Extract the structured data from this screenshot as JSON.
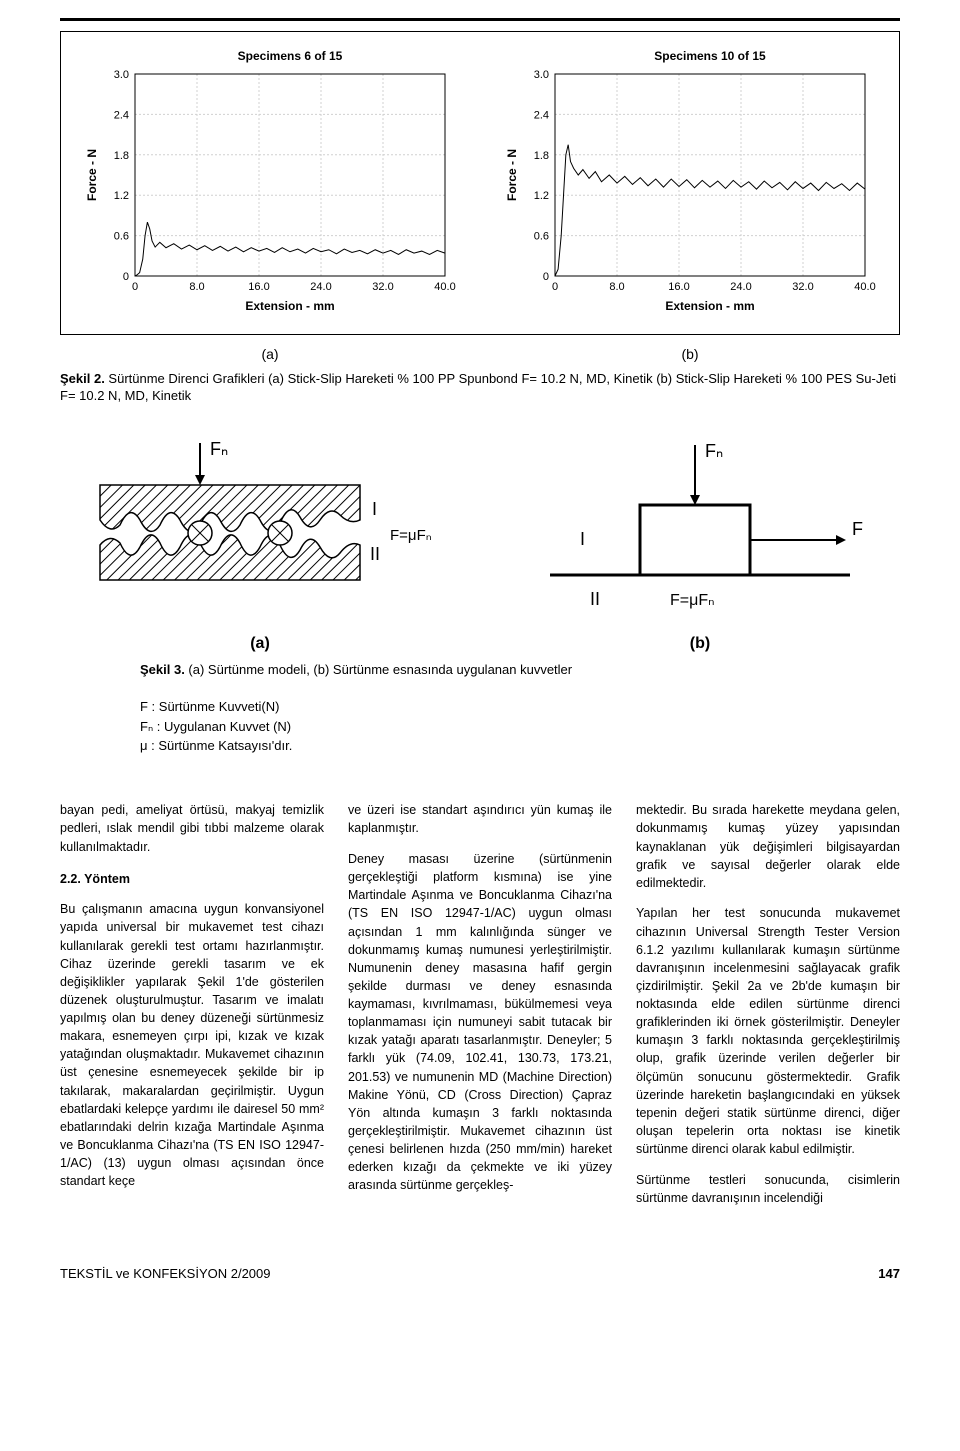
{
  "chart_common": {
    "title_font_weight": "bold",
    "title_fontsize": 12,
    "axis_label_fontsize": 12,
    "tick_fontsize": 11,
    "grid_color": "#d0d0d0",
    "axis_color": "#000",
    "series_color": "#000",
    "series_width": 1.0,
    "background": "#ffffff",
    "ylabel": "Force - N",
    "xlabel": "Extension - mm",
    "xlim": [
      0,
      40
    ],
    "xtick_step": 8,
    "ylim": [
      0,
      3.0
    ],
    "ytick_step": 0.6
  },
  "chart_a": {
    "title": "Specimens 6 of 15",
    "x_ticks": [
      "0",
      "8.0",
      "16.0",
      "24.0",
      "32.0",
      "40.0"
    ],
    "y_ticks": [
      "0",
      "0.6",
      "1.2",
      "1.8",
      "2.4",
      "3.0"
    ],
    "series": [
      [
        0,
        0.0
      ],
      [
        0.3,
        0.02
      ],
      [
        0.6,
        0.05
      ],
      [
        1.0,
        0.25
      ],
      [
        1.3,
        0.6
      ],
      [
        1.6,
        0.8
      ],
      [
        1.9,
        0.7
      ],
      [
        2.2,
        0.52
      ],
      [
        2.6,
        0.43
      ],
      [
        3.2,
        0.5
      ],
      [
        4.0,
        0.42
      ],
      [
        5.0,
        0.48
      ],
      [
        6.0,
        0.4
      ],
      [
        7.0,
        0.46
      ],
      [
        8.0,
        0.39
      ],
      [
        9.0,
        0.45
      ],
      [
        10.0,
        0.38
      ],
      [
        11.0,
        0.44
      ],
      [
        12.0,
        0.37
      ],
      [
        13.0,
        0.43
      ],
      [
        14.0,
        0.36
      ],
      [
        15.0,
        0.42
      ],
      [
        16.0,
        0.37
      ],
      [
        17.0,
        0.41
      ],
      [
        18.0,
        0.35
      ],
      [
        19.0,
        0.42
      ],
      [
        20.0,
        0.36
      ],
      [
        21.0,
        0.4
      ],
      [
        22.0,
        0.34
      ],
      [
        23.0,
        0.41
      ],
      [
        24.0,
        0.36
      ],
      [
        25.0,
        0.39
      ],
      [
        26.0,
        0.33
      ],
      [
        27.0,
        0.4
      ],
      [
        28.0,
        0.35
      ],
      [
        29.0,
        0.38
      ],
      [
        30.0,
        0.33
      ],
      [
        31.0,
        0.39
      ],
      [
        32.0,
        0.34
      ],
      [
        33.0,
        0.38
      ],
      [
        34.0,
        0.32
      ],
      [
        35.0,
        0.39
      ],
      [
        36.0,
        0.34
      ],
      [
        37.0,
        0.37
      ],
      [
        38.0,
        0.32
      ],
      [
        39.0,
        0.38
      ],
      [
        40.0,
        0.34
      ]
    ]
  },
  "chart_b": {
    "title": "Specimens 10 of 15",
    "x_ticks": [
      "0",
      "8.0",
      "16.0",
      "24.0",
      "32.0",
      "40.0"
    ],
    "y_ticks": [
      "0",
      "0.6",
      "1.2",
      "1.8",
      "2.4",
      "3.0"
    ],
    "series": [
      [
        0,
        0.0
      ],
      [
        0.4,
        0.1
      ],
      [
        0.8,
        0.6
      ],
      [
        1.1,
        1.2
      ],
      [
        1.4,
        1.8
      ],
      [
        1.7,
        1.95
      ],
      [
        2.0,
        1.7
      ],
      [
        2.4,
        1.6
      ],
      [
        3.0,
        1.5
      ],
      [
        3.6,
        1.58
      ],
      [
        4.4,
        1.45
      ],
      [
        5.2,
        1.55
      ],
      [
        6.0,
        1.4
      ],
      [
        7.0,
        1.5
      ],
      [
        8.0,
        1.38
      ],
      [
        9.0,
        1.48
      ],
      [
        10.0,
        1.36
      ],
      [
        11.0,
        1.46
      ],
      [
        12.0,
        1.34
      ],
      [
        13.0,
        1.44
      ],
      [
        14.0,
        1.32
      ],
      [
        15.0,
        1.44
      ],
      [
        16.0,
        1.33
      ],
      [
        17.0,
        1.43
      ],
      [
        18.0,
        1.31
      ],
      [
        19.0,
        1.42
      ],
      [
        20.0,
        1.32
      ],
      [
        21.0,
        1.41
      ],
      [
        22.0,
        1.3
      ],
      [
        23.0,
        1.42
      ],
      [
        24.0,
        1.32
      ],
      [
        25.0,
        1.4
      ],
      [
        26.0,
        1.29
      ],
      [
        27.0,
        1.41
      ],
      [
        28.0,
        1.31
      ],
      [
        29.0,
        1.39
      ],
      [
        30.0,
        1.28
      ],
      [
        31.0,
        1.4
      ],
      [
        32.0,
        1.3
      ],
      [
        33.0,
        1.38
      ],
      [
        34.0,
        1.27
      ],
      [
        35.0,
        1.39
      ],
      [
        36.0,
        1.3
      ],
      [
        37.0,
        1.37
      ],
      [
        38.0,
        1.27
      ],
      [
        39.0,
        1.38
      ],
      [
        40.0,
        1.29
      ]
    ]
  },
  "ab_labels": {
    "a": "(a)",
    "b": "(b)"
  },
  "caption_fig2": {
    "lead": "Şekil 2.",
    "text": " Sürtünme Direnci Grafikleri (a) Stick-Slip Hareketi % 100 PP Spunbond F= 10.2 N, MD, Kinetik (b) Stick-Slip Hareketi % 100 PES Su-Jeti F= 10.2 N, MD, Kinetik"
  },
  "diagram_a": {
    "fn": "Fₙ",
    "I": "I",
    "II": "II",
    "F_eq": "F=μFₙ",
    "hatch_color": "#000",
    "line_color": "#000",
    "ab": "(a)"
  },
  "diagram_b": {
    "fn": "Fₙ",
    "F": "F",
    "I": "I",
    "II": "II",
    "F_eq": "F=μFₙ",
    "line_color": "#000",
    "ab": "(b)"
  },
  "caption_fig3": {
    "lead": "Şekil 3.",
    "text": " (a) Sürtünme modeli, (b) Sürtünme esnasında uygulanan kuvvetler"
  },
  "legend": {
    "l1": "F  : Sürtünme Kuvveti(N)",
    "l2": "Fₙ : Uygulanan Kuvvet (N)",
    "l3": "μ  : Sürtünme Katsayısı'dır."
  },
  "cols": {
    "c1_p1": "bayan pedi, ameliyat örtüsü, makyaj temizlik pedleri, ıslak mendil gibi tıbbi malzeme olarak kullanılmaktadır.",
    "c1_h": "2.2. Yöntem",
    "c1_p2": "Bu çalışmanın amacına uygun konvansiyonel yapıda universal bir mukavemet test cihazı kullanılarak gerekli test ortamı hazırlanmıştır. Cihaz üzerinde gerekli tasarım ve ek değişiklikler yapılarak Şekil 1'de gösterilen düzenek oluşturulmuştur. Tasarım ve imalatı yapılmış olan bu deney düzeneği sürtünmesiz makara, esnemeyen çırpı ipi, kızak ve kızak yatağından oluşmaktadır. Mukavemet cihazının üst çenesine esnemeyecek şekilde bir ip takılarak, makaralardan geçirilmiştir. Uygun ebatlardaki kelepçe yardımı ile dairesel 50 mm² ebatlarındaki delrin kızağa Martindale Aşınma ve Boncuklanma Cihazı'na (TS EN ISO 12947-1/AC) (13) uygun olması açısından önce standart keçe",
    "c2_p1": "ve üzeri ise standart aşındırıcı yün kumaş ile kaplanmıştır.",
    "c2_p2": "Deney masası üzerine (sürtünmenin gerçekleştiği platform kısmına) ise yine Martindale Aşınma ve Boncuklanma Cihazı'na (TS EN ISO 12947-1/AC) uygun olması açısından 1 mm kalınlığında sünger ve dokunmamış kumaş numunesi yerleştirilmiştir. Numunenin deney masasına hafif gergin şekilde durması ve deney esnasında kaymaması, kıvrılmaması, bükülmemesi veya toplanmaması için numuneyi sabit tutacak bir kızak yatağı aparatı tasarlanmıştır. Deneyler; 5 farklı yük (74.09, 102.41, 130.73, 173.21, 201.53) ve numunenin MD (Machine Direction) Makine Yönü, CD (Cross Direction) Çapraz Yön altında kumaşın 3 farklı noktasında gerçekleştirilmiştir. Mukavemet cihazının üst çenesi belirlenen hızda (250 mm/min) hareket ederken kızağı da çekmekte ve iki yüzey arasında sürtünme gerçekleş-",
    "c3_p1": "mektedir. Bu sırada harekette meydana gelen, dokunmamış kumaş yüzey yapısından kaynaklanan yük değişimleri bilgisayardan grafik ve sayısal değerler olarak elde edilmektedir.",
    "c3_p2": "Yapılan her test sonucunda mukavemet cihazının Universal Strength Tester Version 6.1.2 yazılımı kullanılarak kumaşın sürtünme davranışının incelenmesini sağlayacak grafik çizdirilmiştir. Şekil 2a ve 2b'de kumaşın bir noktasında elde edilen sürtünme direnci grafiklerinden iki örnek gösterilmiştir. Deneyler kumaşın 3 farklı noktasında gerçekleştirilmiş olup, grafik üzerinde verilen değerler bir ölçümün sonucunu göstermektedir. Grafik üzerinde hareketin başlangıcındaki en yüksek tepenin değeri statik sürtünme direnci, diğer oluşan tepelerin orta noktası ise kinetik sürtünme direnci olarak kabul edilmiştir.",
    "c3_p3": "Sürtünme testleri sonucunda, cisimlerin sürtünme davranışının incelendiği"
  },
  "footer": {
    "journal": "TEKSTİL ve KONFEKSİYON   2/2009",
    "page": "147"
  }
}
